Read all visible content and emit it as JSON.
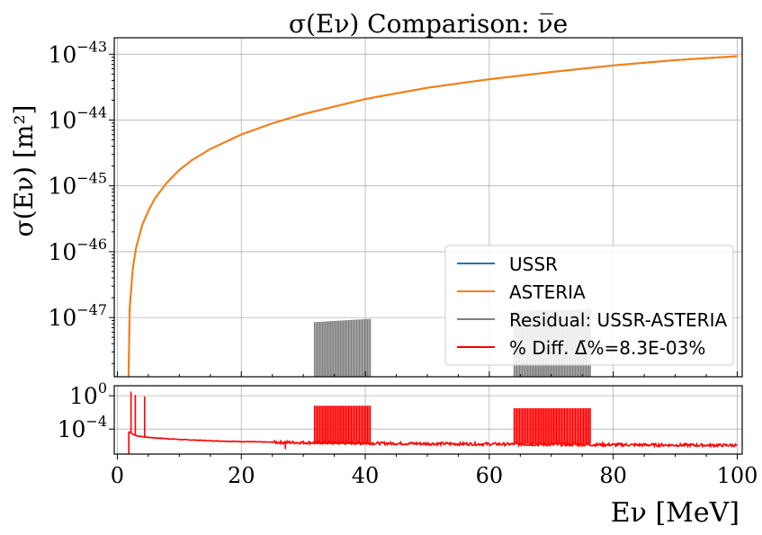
{
  "chart_data": [
    {
      "type": "line",
      "panel": "main",
      "title": "σ(Eν) Comparison: ν̅e",
      "xlabel": "",
      "ylabel": "σ(Eν) [m²]",
      "yscale": "log",
      "xlim": [
        -0.5,
        100.8
      ],
      "ylim_log10": [
        -47.9,
        -42.75
      ],
      "y_ticks": [
        {
          "label_base": "10",
          "label_exp": "−43",
          "log10": -43
        },
        {
          "label_base": "10",
          "label_exp": "−44",
          "log10": -44
        },
        {
          "label_base": "10",
          "label_exp": "−45",
          "log10": -45
        },
        {
          "label_base": "10",
          "label_exp": "−46",
          "log10": -46
        },
        {
          "label_base": "10",
          "label_exp": "−47",
          "log10": -47
        }
      ],
      "grid": true,
      "legend_position": "bottom-right",
      "series": [
        {
          "name": "USSR",
          "color": "#1f77b4",
          "x": [
            1.81,
            2,
            2.5,
            3,
            4,
            5,
            6,
            8,
            10,
            12,
            15,
            20,
            25,
            30,
            40,
            50,
            60,
            70,
            80,
            90,
            100
          ],
          "log10_y": [
            -47.9,
            -46.85,
            -46.25,
            -45.95,
            -45.6,
            -45.38,
            -45.2,
            -44.95,
            -44.76,
            -44.61,
            -44.44,
            -44.22,
            -44.05,
            -43.91,
            -43.68,
            -43.51,
            -43.38,
            -43.27,
            -43.17,
            -43.09,
            -43.03
          ]
        },
        {
          "name": "ASTERIA",
          "color": "#ff7f0e",
          "x": [
            1.81,
            2,
            2.5,
            3,
            4,
            5,
            6,
            8,
            10,
            12,
            15,
            20,
            25,
            30,
            40,
            50,
            60,
            70,
            80,
            90,
            100
          ],
          "log10_y": [
            -47.9,
            -46.85,
            -46.25,
            -45.95,
            -45.6,
            -45.38,
            -45.2,
            -44.95,
            -44.76,
            -44.61,
            -44.44,
            -44.22,
            -44.05,
            -43.91,
            -43.68,
            -43.51,
            -43.38,
            -43.27,
            -43.17,
            -43.09,
            -43.03
          ]
        },
        {
          "name": "Residual: USSR-ASTERIA",
          "color": "#808080",
          "spike_regions": [
            {
              "x_start": 31.8,
              "x_end": 40.8,
              "log10_top_start": -47.07,
              "log10_top_end": -47.02
            },
            {
              "x_start": 64.0,
              "x_end": 76.3,
              "log10_top_start": -46.9,
              "log10_top_end": -46.88
            }
          ]
        },
        {
          "name": "% Diff. Δ̄%=8.3E-03%",
          "color": "#ff0000"
        }
      ]
    },
    {
      "type": "line",
      "panel": "ratio",
      "xlabel": "Eν [MeV]",
      "ylabel": "",
      "yscale": "log",
      "xlim": [
        -0.5,
        100.8
      ],
      "ylim_log10": [
        -7.0,
        1.2
      ],
      "x_ticks": [
        "0",
        "20",
        "40",
        "60",
        "80",
        "100"
      ],
      "x_tick_values": [
        0,
        20,
        40,
        60,
        80,
        100
      ],
      "y_ticks": [
        {
          "label_base": "10",
          "label_exp": "0",
          "log10": 0
        },
        {
          "label_base": "10",
          "label_exp": "−4",
          "log10": -4
        }
      ],
      "grid": true,
      "series": [
        {
          "name": "% Diff.",
          "color": "#ff0000",
          "baseline": {
            "x": [
              1.9,
              2.5,
              3,
              4,
              5,
              7,
              10,
              15,
              20,
              27,
              30,
              40,
              50,
              60,
              64,
              70,
              80,
              90,
              100
            ],
            "log10_y": [
              -4.3,
              -4.6,
              -4.8,
              -4.9,
              -5.0,
              -5.1,
              -5.25,
              -5.4,
              -5.5,
              -5.6,
              -5.62,
              -5.7,
              -5.75,
              -5.8,
              -5.82,
              -5.85,
              -5.88,
              -5.92,
              -5.95
            ]
          },
          "spikes": [
            {
              "x": 1.85,
              "log10_y": -7.0
            },
            {
              "x": 2.2,
              "log10_y": 0.5
            },
            {
              "x": 2.9,
              "log10_y": 0.1
            },
            {
              "x": 4.4,
              "log10_y": -0.1
            },
            {
              "x": 27.1,
              "log10_y": -6.4
            }
          ],
          "spike_regions": [
            {
              "x_start": 31.8,
              "x_end": 40.8,
              "log10_top": -1.2
            },
            {
              "x_start": 64.0,
              "x_end": 76.3,
              "log10_top": -1.5
            }
          ]
        }
      ]
    }
  ]
}
